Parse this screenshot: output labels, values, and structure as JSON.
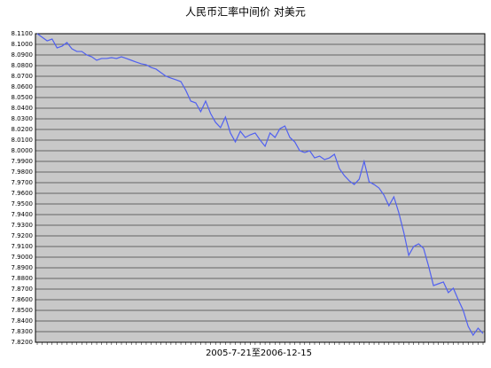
{
  "chart_data": {
    "type": "line",
    "title": "人民币汇率中间价 对美元",
    "x_label": "2005-7-21至2006-12-15",
    "series": [
      {
        "name": "对美元",
        "color": "#5060f0",
        "values": [
          8.11,
          8.1067,
          8.1033,
          8.105,
          8.0967,
          8.0983,
          8.1017,
          8.0958,
          8.0933,
          8.0933,
          8.09,
          8.0883,
          8.085,
          8.0867,
          8.0867,
          8.0875,
          8.0867,
          8.0883,
          8.0867,
          8.085,
          8.0833,
          8.0817,
          8.0808,
          8.0783,
          8.0767,
          8.0733,
          8.07,
          8.0683,
          8.0667,
          8.065,
          8.0567,
          8.0467,
          8.045,
          8.0367,
          8.0467,
          8.035,
          8.0267,
          8.0217,
          8.0317,
          8.0167,
          8.0083,
          8.0183,
          8.0125,
          8.015,
          8.0167,
          8.01,
          8.0042,
          8.0167,
          8.0125,
          8.0208,
          8.0233,
          8.0125,
          8.0083,
          8.0,
          7.9983,
          8.0,
          7.9933,
          7.995,
          7.9917,
          7.9933,
          7.9967,
          7.9833,
          7.9767,
          7.9717,
          7.9683,
          7.9733,
          7.99,
          7.9708,
          7.9683,
          7.965,
          7.9583,
          7.9483,
          7.9567,
          7.9417,
          7.9233,
          7.9017,
          7.91,
          7.9125,
          7.9083,
          7.8917,
          7.8733,
          7.875,
          7.8767,
          7.8667,
          7.8708,
          7.86,
          7.85,
          7.835,
          7.8267,
          7.8333,
          7.8283
        ]
      }
    ],
    "ylim": [
      7.82,
      8.11
    ],
    "yticks": [
      {
        "value": 7.82,
        "label": "7.8200"
      },
      {
        "value": 7.83,
        "label": "7.8300"
      },
      {
        "value": 7.84,
        "label": "7.8400"
      },
      {
        "value": 7.85,
        "label": "7.8500"
      },
      {
        "value": 7.86,
        "label": "7.8600"
      },
      {
        "value": 7.87,
        "label": "7.8700"
      },
      {
        "value": 7.88,
        "label": "7.8800"
      },
      {
        "value": 7.89,
        "label": "7.8900"
      },
      {
        "value": 7.9,
        "label": "7.9000"
      },
      {
        "value": 7.91,
        "label": "7.9100"
      },
      {
        "value": 7.92,
        "label": "7.9200"
      },
      {
        "value": 7.93,
        "label": "7.9300"
      },
      {
        "value": 7.94,
        "label": "7.9400"
      },
      {
        "value": 7.95,
        "label": "7.9500"
      },
      {
        "value": 7.96,
        "label": "7.9600"
      },
      {
        "value": 7.97,
        "label": "7.9700"
      },
      {
        "value": 7.98,
        "label": "7.9800"
      },
      {
        "value": 7.99,
        "label": "7.9900"
      },
      {
        "value": 8.0,
        "label": "8.0000"
      },
      {
        "value": 8.01,
        "label": "8.0100"
      },
      {
        "value": 8.02,
        "label": "8.0200"
      },
      {
        "value": 8.03,
        "label": "8.0300"
      },
      {
        "value": 8.04,
        "label": "8.0400"
      },
      {
        "value": 8.05,
        "label": "8.0500"
      },
      {
        "value": 8.06,
        "label": "8.0600"
      },
      {
        "value": 8.07,
        "label": "8.0700"
      },
      {
        "value": 8.08,
        "label": "8.0800"
      },
      {
        "value": 8.09,
        "label": "8.0900"
      },
      {
        "value": 8.1,
        "label": "8.1000"
      },
      {
        "value": 8.11,
        "label": "8.1100"
      }
    ],
    "grid": true
  }
}
